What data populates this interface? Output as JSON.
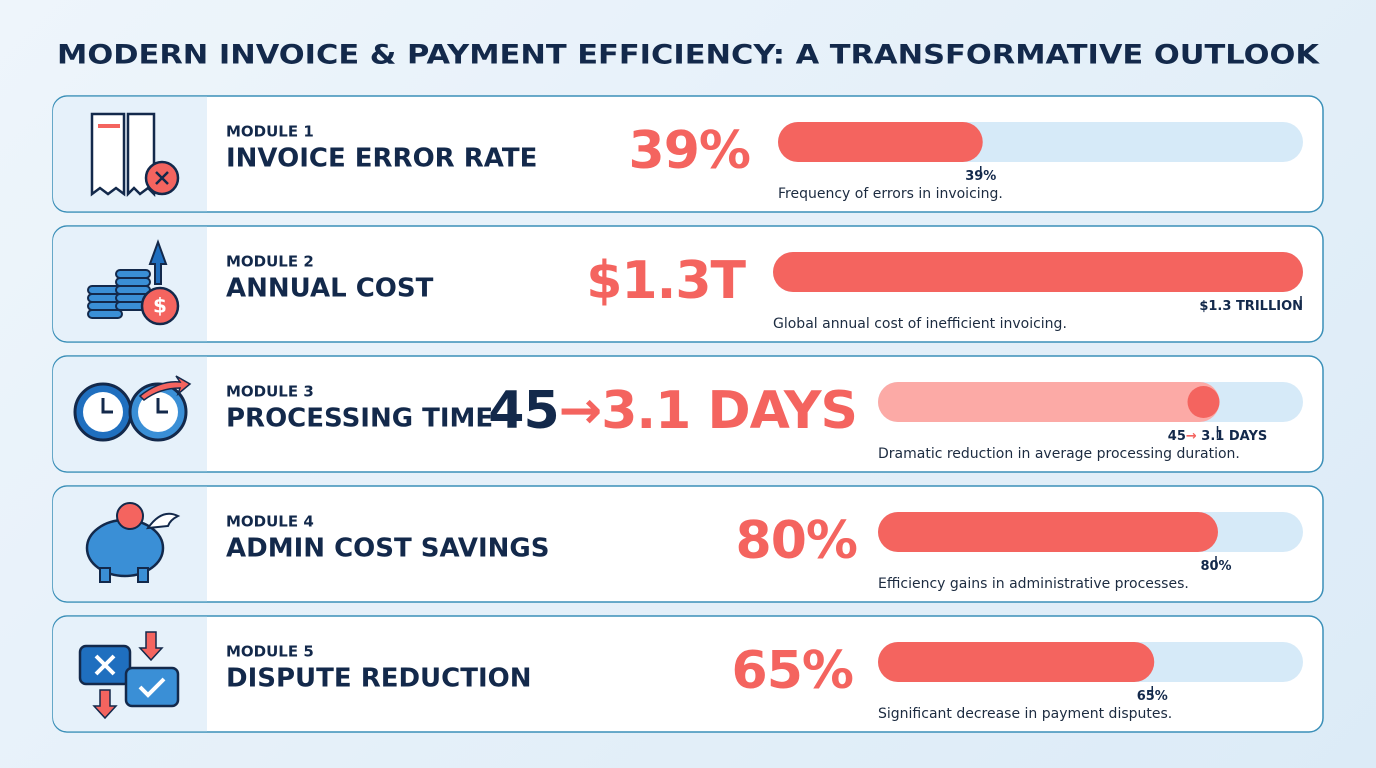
{
  "header": {
    "title": "MODERN INVOICE & PAYMENT EFFICIENCY: A TRANSFORMATIVE OUTLOOK"
  },
  "modules": [
    {
      "label": "MODULE 1",
      "title": "INVOICE ERROR RATE",
      "value_text": [
        "39%"
      ],
      "value": 39,
      "value_label": [
        "39%"
      ],
      "xlim": [
        0,
        100
      ],
      "description": "Frequency of errors in invoicing."
    },
    {
      "label": "MODULE 2",
      "title": "ANNUAL COST",
      "value_text": [
        "$1.3T"
      ],
      "value": 1.3,
      "value_label": [
        "$1.3 TRILLION"
      ],
      "xlim": [
        0,
        1.3
      ],
      "description": "Global annual cost of inefficient invoicing."
    },
    {
      "label": "MODULE 3",
      "title": "PROCESSING TIME",
      "value_text": [
        "45",
        "→",
        "3.1 DAYS"
      ],
      "value": 45,
      "value_label": [
        "45",
        "→",
        " 3.1 DAYS"
      ],
      "xlim": [
        0,
        56
      ],
      "description": "Dramatic reduction in average processing duration."
    },
    {
      "label": "MODULE 4",
      "title": "ADMIN COST SAVINGS",
      "value_text": [
        "80%"
      ],
      "value": 80,
      "value_label": [
        "80%"
      ],
      "xlim": [
        0,
        100
      ],
      "description": "Efficiency gains in administrative processes."
    },
    {
      "label": "MODULE 5",
      "title": "DISPUTE REDUCTION",
      "value_text": [
        "65%"
      ],
      "value": 65,
      "value_label": [
        "65%"
      ],
      "xlim": [
        0,
        100
      ],
      "description": "Significant decrease in payment disputes."
    }
  ]
}
